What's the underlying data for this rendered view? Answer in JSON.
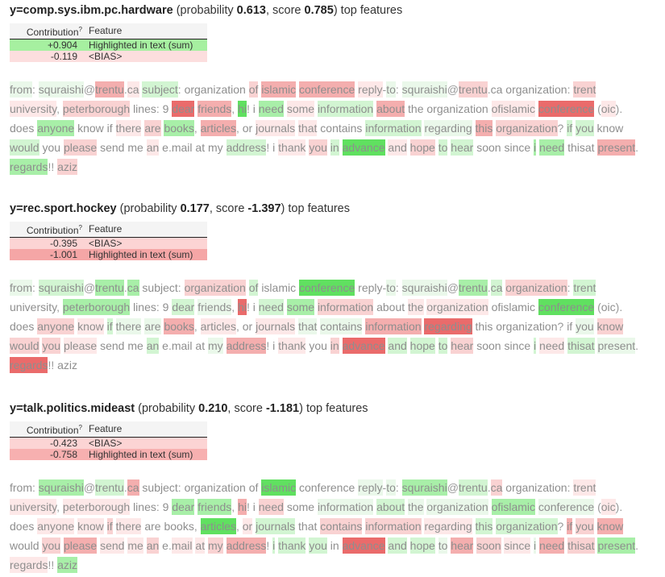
{
  "table_header": [
    "Contribution",
    "?",
    "Feature"
  ],
  "sections": [
    {
      "header": [
        "y=comp.sys.ibm.pc.hardware",
        " (probability ",
        "0.613",
        ", score ",
        "0.785",
        ") top features"
      ],
      "rows": [
        [
          "+0.904",
          "Highlighted in text (sum)",
          "#a6f0a0"
        ],
        [
          "-0.119",
          "<BIAS>",
          "#fcdede"
        ]
      ],
      "tokens": [
        [
          "from",
          "#eaf8ea",
          ": "
        ],
        [
          "squraishi",
          "#eaf8ea",
          "@"
        ],
        [
          "trentu",
          "#f4aeae",
          "."
        ],
        [
          "ca",
          "#fde8e8",
          " "
        ],
        [
          "subject",
          "#d2f5d2",
          ": "
        ],
        [
          "organization",
          null,
          " "
        ],
        [
          "of",
          "#f9d2d2",
          " "
        ],
        [
          "islamic",
          "#f4aeae",
          " "
        ],
        [
          "conference",
          "#f4aeae",
          " "
        ],
        [
          "reply",
          "#fde8e8",
          "-"
        ],
        [
          "to",
          "#eaf8ea",
          ": "
        ],
        [
          "squraishi",
          "#eaf8ea",
          "@"
        ],
        [
          "trentu",
          "#f9d2d2",
          "."
        ],
        [
          "ca",
          null,
          " "
        ],
        [
          "organization",
          null,
          ": "
        ],
        [
          "trent",
          "#f9d2d2",
          " "
        ],
        [
          "university",
          "#fde8e8",
          ", "
        ],
        [
          "peterborough",
          "#f9d2d2",
          " "
        ],
        [
          "lines",
          null,
          ": "
        ],
        [
          "9",
          null,
          " "
        ],
        [
          "dear",
          "#ea6b6b",
          " "
        ],
        [
          "friends",
          "#f4aeae",
          ", "
        ],
        [
          "hi",
          "#60e060",
          "! "
        ],
        [
          "i",
          null,
          " "
        ],
        [
          "need",
          "#a8efa8",
          " "
        ],
        [
          "some",
          "#fde8e8",
          " "
        ],
        [
          "information",
          "#d2f5d2",
          " "
        ],
        [
          "about",
          "#f4aeae",
          " "
        ],
        [
          "the",
          null,
          " "
        ],
        [
          "organization",
          null,
          " "
        ],
        [
          "ofislamic",
          "#fde8e8",
          " "
        ],
        [
          "conference",
          "#ea6b6b",
          " ("
        ],
        [
          "oic",
          "#fde8e8",
          "). "
        ],
        [
          "does",
          null,
          " "
        ],
        [
          "anyone",
          "#a8efa8",
          " "
        ],
        [
          "know",
          null,
          " "
        ],
        [
          "if",
          null,
          " "
        ],
        [
          "there",
          "#fde8e8",
          " "
        ],
        [
          "are",
          "#f9d2d2",
          " "
        ],
        [
          "books",
          "#a8efa8",
          ", "
        ],
        [
          "articles",
          "#f4aeae",
          ", "
        ],
        [
          "or",
          null,
          " "
        ],
        [
          "journals",
          "#fde8e8",
          " "
        ],
        [
          "that",
          "#fde8e8",
          " "
        ],
        [
          "contains",
          null,
          " "
        ],
        [
          "information",
          "#d2f5d2",
          " "
        ],
        [
          "regarding",
          "#eaf8ea",
          " "
        ],
        [
          "this",
          "#f4aeae",
          " "
        ],
        [
          "organization",
          "#f9d2d2",
          "? "
        ],
        [
          "if",
          "#d2f5d2",
          " "
        ],
        [
          "you",
          "#d2f5d2",
          " "
        ],
        [
          "know",
          null,
          " "
        ],
        [
          "would",
          "#d2f5d2",
          " "
        ],
        [
          "you",
          null,
          " "
        ],
        [
          "please",
          "#f9d2d2",
          " "
        ],
        [
          "send",
          null,
          " "
        ],
        [
          "me",
          null,
          " "
        ],
        [
          "an",
          "#fde8e8",
          " "
        ],
        [
          "e",
          null,
          "."
        ],
        [
          "mail",
          null,
          " "
        ],
        [
          "at",
          null,
          " "
        ],
        [
          "my",
          null,
          " "
        ],
        [
          "address",
          "#d2f5d2",
          "! "
        ],
        [
          "i",
          null,
          " "
        ],
        [
          "thank",
          "#fde8e8",
          " "
        ],
        [
          "you",
          "#f9d2d2",
          " "
        ],
        [
          "in",
          "#d2f5d2",
          " "
        ],
        [
          "advance",
          "#60e060",
          " "
        ],
        [
          "and",
          "#fde8e8",
          " "
        ],
        [
          "hope",
          "#f9d2d2",
          " "
        ],
        [
          "to",
          "#d2f5d2",
          " "
        ],
        [
          "hear",
          "#d2f5d2",
          " "
        ],
        [
          "soon",
          null,
          " "
        ],
        [
          "since",
          null,
          " "
        ],
        [
          "i",
          "#a8efa8",
          " "
        ],
        [
          "need",
          "#a8efa8",
          " "
        ],
        [
          "thisat",
          null,
          " "
        ],
        [
          "present",
          "#f4aeae",
          ". "
        ],
        [
          "regards",
          "#a8efa8",
          "!! "
        ],
        [
          "aziz",
          "#f9d2d2"
        ]
      ]
    },
    {
      "header": [
        "y=rec.sport.hockey",
        " (probability ",
        "0.177",
        ", score ",
        "-1.397",
        ") top features"
      ],
      "rows": [
        [
          "-0.395",
          "<BIAS>",
          "#fcd4d4"
        ],
        [
          "-1.001",
          "Highlighted in text (sum)",
          "#f5a6a6"
        ]
      ],
      "tokens": [
        [
          "from",
          "#eaf8ea",
          ": "
        ],
        [
          "squraishi",
          "#d2f5d2",
          "@"
        ],
        [
          "trentu",
          "#a8efa8",
          "."
        ],
        [
          "ca",
          "#a8efa8",
          " "
        ],
        [
          "subject",
          null,
          ": "
        ],
        [
          "organization",
          "#f9d2d2",
          " "
        ],
        [
          "of",
          "#d2f5d2",
          " "
        ],
        [
          "islamic",
          null,
          " "
        ],
        [
          "conference",
          "#60e060",
          " "
        ],
        [
          "reply",
          null,
          "-"
        ],
        [
          "to",
          "#eaf8ea",
          ": "
        ],
        [
          "squraishi",
          "#eaf8ea",
          "@"
        ],
        [
          "trentu",
          "#a8efa8",
          "."
        ],
        [
          "ca",
          "#d2f5d2",
          " "
        ],
        [
          "organization",
          "#f9d2d2",
          ": "
        ],
        [
          "trent",
          "#d2f5d2",
          " "
        ],
        [
          "university",
          null,
          ", "
        ],
        [
          "peterborough",
          "#a8efa8",
          " "
        ],
        [
          "lines",
          null,
          ": "
        ],
        [
          "9",
          null,
          " "
        ],
        [
          "dear",
          "#d2f5d2",
          " "
        ],
        [
          "friends",
          "#eaf8ea",
          ", "
        ],
        [
          "hi",
          "#ea6b6b",
          "! "
        ],
        [
          "i",
          null,
          " "
        ],
        [
          "need",
          "#d2f5d2",
          " "
        ],
        [
          "some",
          "#a8efa8",
          " "
        ],
        [
          "information",
          "#f9d2d2",
          " "
        ],
        [
          "about",
          null,
          " "
        ],
        [
          "the",
          "#fde8e8",
          " "
        ],
        [
          "organization",
          "#fde8e8",
          " "
        ],
        [
          "ofislamic",
          null,
          " "
        ],
        [
          "conference",
          "#60e060",
          " ("
        ],
        [
          "oic",
          null,
          "). "
        ],
        [
          "does",
          null,
          " "
        ],
        [
          "anyone",
          "#f9d2d2",
          " "
        ],
        [
          "know",
          "#fde8e8",
          " "
        ],
        [
          "if",
          "#d2f5d2",
          " "
        ],
        [
          "there",
          "#eaf8ea",
          " "
        ],
        [
          "are",
          "#eaf8ea",
          " "
        ],
        [
          "books",
          "#f4aeae",
          ", "
        ],
        [
          "articles",
          "#fde8e8",
          ", "
        ],
        [
          "or",
          null,
          " "
        ],
        [
          "journals",
          "#fde8e8",
          " "
        ],
        [
          "that",
          "#eaf8ea",
          " "
        ],
        [
          "contains",
          "#eaf8ea",
          " "
        ],
        [
          "information",
          "#f4aeae",
          " "
        ],
        [
          "regarding",
          "#ea6b6b",
          " "
        ],
        [
          "this",
          null,
          " "
        ],
        [
          "organization",
          null,
          "? "
        ],
        [
          "if",
          null,
          " "
        ],
        [
          "you",
          "#eaf8ea",
          " "
        ],
        [
          "know",
          "#f9d2d2",
          " "
        ],
        [
          "would",
          "#f9d2d2",
          " "
        ],
        [
          "you",
          "#f9d2d2",
          " "
        ],
        [
          "please",
          "#fde8e8",
          " "
        ],
        [
          "send",
          null,
          " "
        ],
        [
          "me",
          null,
          " "
        ],
        [
          "an",
          "#d2f5d2",
          " "
        ],
        [
          "e",
          null,
          "."
        ],
        [
          "mail",
          null,
          " "
        ],
        [
          "at",
          null,
          " "
        ],
        [
          "my",
          "#eaf8ea",
          " "
        ],
        [
          "address",
          "#f4aeae",
          "! "
        ],
        [
          "i",
          null,
          " "
        ],
        [
          "thank",
          "#fde8e8",
          " "
        ],
        [
          "you",
          null,
          " "
        ],
        [
          "in",
          "#f9d2d2",
          " "
        ],
        [
          "advance",
          "#ea6b6b",
          " "
        ],
        [
          "and",
          "#d2f5d2",
          " "
        ],
        [
          "hope",
          "#d2f5d2",
          " "
        ],
        [
          "to",
          "#d2f5d2",
          " "
        ],
        [
          "hear",
          "#f9d2d2",
          " "
        ],
        [
          "soon",
          null,
          " "
        ],
        [
          "since",
          null,
          " "
        ],
        [
          "i",
          "#d2f5d2",
          " "
        ],
        [
          "need",
          "#fde8e8",
          " "
        ],
        [
          "thisat",
          "#d2f5d2",
          " "
        ],
        [
          "present",
          "#eaf8ea",
          ". "
        ],
        [
          "regards",
          "#ea6b6b",
          "!! "
        ],
        [
          "aziz",
          null
        ]
      ]
    },
    {
      "header": [
        "y=talk.politics.mideast",
        " (probability ",
        "0.210",
        ", score ",
        "-1.181",
        ") top features"
      ],
      "rows": [
        [
          "-0.423",
          "<BIAS>",
          "#fcd4d4"
        ],
        [
          "-0.758",
          "Highlighted in text (sum)",
          "#f7b0b0"
        ]
      ],
      "tokens": [
        [
          "from",
          null,
          ": "
        ],
        [
          "squraishi",
          "#a8efa8",
          "@"
        ],
        [
          "trentu",
          "#d2f5d2",
          "."
        ],
        [
          "ca",
          "#f4aeae",
          " "
        ],
        [
          "subject",
          null,
          ": "
        ],
        [
          "organization",
          null,
          " "
        ],
        [
          "of",
          null,
          " "
        ],
        [
          "islamic",
          "#60e060",
          " "
        ],
        [
          "conference",
          null,
          " "
        ],
        [
          "reply",
          "#eaf8ea",
          "-"
        ],
        [
          "to",
          "#eaf8ea",
          ": "
        ],
        [
          "squraishi",
          "#a8efa8",
          "@"
        ],
        [
          "trentu",
          "#d2f5d2",
          "."
        ],
        [
          "ca",
          "#f9d2d2",
          " "
        ],
        [
          "organization",
          null,
          ": "
        ],
        [
          "trent",
          "#fde8e8",
          " "
        ],
        [
          "university",
          "#fde8e8",
          ", "
        ],
        [
          "peterborough",
          "#fde8e8",
          " "
        ],
        [
          "lines",
          null,
          ": "
        ],
        [
          "9",
          null,
          " "
        ],
        [
          "dear",
          "#a8efa8",
          " "
        ],
        [
          "friends",
          "#a8efa8",
          ", "
        ],
        [
          "hi",
          "#f4aeae",
          "! "
        ],
        [
          "i",
          null,
          " "
        ],
        [
          "need",
          "#f9d2d2",
          " "
        ],
        [
          "some",
          null,
          " "
        ],
        [
          "information",
          "#eaf8ea",
          " "
        ],
        [
          "about",
          "#d2f5d2",
          " "
        ],
        [
          "the",
          "#eaf8ea",
          " "
        ],
        [
          "organization",
          "#eaf8ea",
          " "
        ],
        [
          "ofislamic",
          "#a8efa8",
          " "
        ],
        [
          "conference",
          "#eaf8ea",
          " ("
        ],
        [
          "oic",
          "#fde8e8",
          "). "
        ],
        [
          "does",
          null,
          " "
        ],
        [
          "anyone",
          "#fde8e8",
          " "
        ],
        [
          "know",
          "#fde8e8",
          " "
        ],
        [
          "if",
          "#f9d2d2",
          " "
        ],
        [
          "there",
          "#fde8e8",
          " "
        ],
        [
          "are",
          null,
          " "
        ],
        [
          "books",
          null,
          ", "
        ],
        [
          "articles",
          "#60e060",
          ", "
        ],
        [
          "or",
          "#fde8e8",
          " "
        ],
        [
          "journals",
          "#d2f5d2",
          " "
        ],
        [
          "that",
          null,
          " "
        ],
        [
          "contains",
          "#f9d2d2",
          " "
        ],
        [
          "information",
          "#f9d2d2",
          " "
        ],
        [
          "regarding",
          "#fde8e8",
          " "
        ],
        [
          "this",
          "#d2f5d2",
          " "
        ],
        [
          "organization",
          "#d2f5d2",
          "? "
        ],
        [
          "if",
          "#f4aeae",
          " "
        ],
        [
          "you",
          "#f9d2d2",
          " "
        ],
        [
          "know",
          "#f4aeae",
          " "
        ],
        [
          "would",
          null,
          " "
        ],
        [
          "you",
          "#f9d2d2",
          " "
        ],
        [
          "please",
          "#f4aeae",
          " "
        ],
        [
          "send",
          "#fde8e8",
          " "
        ],
        [
          "me",
          "#fde8e8",
          " "
        ],
        [
          "an",
          "#f9d2d2",
          " "
        ],
        [
          "e",
          null,
          "."
        ],
        [
          "mail",
          "#fde8e8",
          " "
        ],
        [
          "at",
          "#fde8e8",
          " "
        ],
        [
          "my",
          "#f9d2d2",
          " "
        ],
        [
          "address",
          "#f4aeae",
          "! "
        ],
        [
          "i",
          "#d2f5d2",
          " "
        ],
        [
          "thank",
          "#d2f5d2",
          " "
        ],
        [
          "you",
          "#d2f5d2",
          " "
        ],
        [
          "in",
          null,
          " "
        ],
        [
          "advance",
          "#ea6b6b",
          " "
        ],
        [
          "and",
          "#d2f5d2",
          " "
        ],
        [
          "hope",
          "#d2f5d2",
          " "
        ],
        [
          "to",
          "#eaf8ea",
          " "
        ],
        [
          "hear",
          "#f4aeae",
          " "
        ],
        [
          "soon",
          "#f9d2d2",
          " "
        ],
        [
          "since",
          "#fde8e8",
          " "
        ],
        [
          "i",
          "#eaf8ea",
          " "
        ],
        [
          "need",
          "#f4aeae",
          " "
        ],
        [
          "thisat",
          "#f9d2d2",
          " "
        ],
        [
          "present",
          "#a8efa8",
          ". "
        ],
        [
          "regards",
          "#fde8e8",
          "!! "
        ],
        [
          "aziz",
          "#a8efa8"
        ]
      ]
    }
  ]
}
